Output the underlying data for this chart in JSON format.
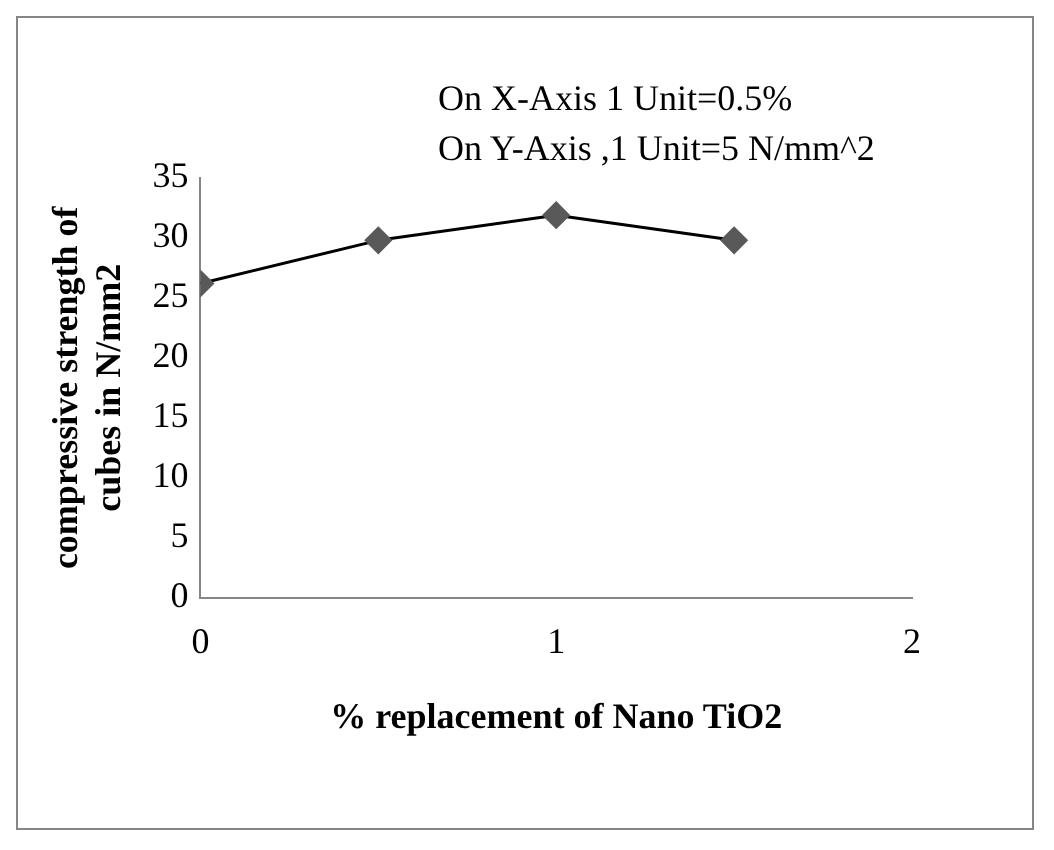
{
  "chart_data": {
    "type": "line",
    "xlabel": "% replacement of Nano TiO2",
    "ylabel": "compressive strength of cubes in N/mm2",
    "annotations": [
      "On X-Axis 1 Unit=0.5%",
      "On Y-Axis ,1 Unit=5 N/mm^2"
    ],
    "x": [
      0,
      0.5,
      1,
      1.5
    ],
    "series": [
      {
        "color": "#595959",
        "values": [
          26.2,
          29.8,
          31.9,
          29.8
        ]
      }
    ],
    "xlim": [
      0,
      2
    ],
    "xticks": [
      0,
      1,
      2
    ],
    "ylim": [
      0,
      35
    ],
    "yticks": [
      0,
      5,
      10,
      15,
      20,
      25,
      30,
      35
    ],
    "grid": false,
    "legend": false,
    "marker": "diamond",
    "line_style": "solid"
  }
}
